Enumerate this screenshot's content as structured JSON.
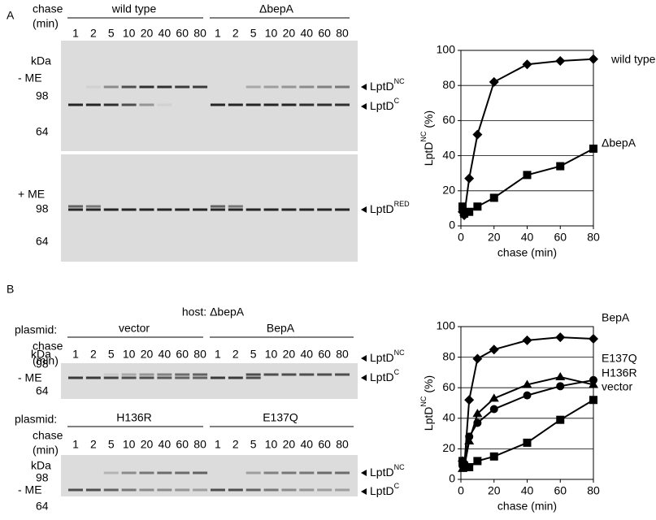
{
  "panel_a": {
    "letter": "A",
    "chase": "chase",
    "chase_unit": "(min)",
    "groups": [
      "wild type",
      "ΔbepA"
    ],
    "lanes": [
      "1",
      "2",
      "5",
      "10",
      "20",
      "40",
      "60",
      "80"
    ],
    "kda": "kDa",
    "conditions": [
      "- ME",
      "+ ME"
    ],
    "markers": [
      "98",
      "64"
    ],
    "band_labels": [
      {
        "base": "LptD",
        "sup": "NC"
      },
      {
        "base": "LptD",
        "sup": "C"
      },
      {
        "base": "LptD",
        "sup": "RED"
      }
    ]
  },
  "panel_b": {
    "letter": "B",
    "host": "host: ΔbepA",
    "plasmid": "plasmid:",
    "chase": "chase",
    "chase_unit": "(min)",
    "groups": [
      "vector",
      "BepA",
      "H136R",
      "E137Q"
    ],
    "lanes": [
      "1",
      "2",
      "5",
      "10",
      "20",
      "40",
      "60",
      "80"
    ],
    "kda": "kDa",
    "condition": "- ME",
    "markers": [
      "98",
      "64"
    ],
    "band_labels": [
      {
        "base": "LptD",
        "sup": "NC"
      },
      {
        "base": "LptD",
        "sup": "C"
      }
    ]
  },
  "chart_data": [
    {
      "type": "line",
      "x_label": "chase (min)",
      "y_label": {
        "base": "LptD",
        "sup": "NC",
        "suffix": "(%)"
      },
      "x": [
        1,
        2,
        5,
        10,
        20,
        40,
        60,
        80
      ],
      "xlim": [
        0,
        80
      ],
      "xticks": [
        0,
        20,
        40,
        60,
        80
      ],
      "ylim": [
        0,
        100
      ],
      "yticks": [
        0,
        20,
        40,
        60,
        80,
        100
      ],
      "grid": true,
      "series": [
        {
          "name": "wild type",
          "color": "#000000",
          "marker": "diamond",
          "values": [
            8,
            6,
            27,
            52,
            82,
            92,
            94,
            95
          ]
        },
        {
          "name": "ΔbepA",
          "color": "#000000",
          "marker": "square",
          "values": [
            11,
            7,
            8,
            11,
            16,
            29,
            34,
            44
          ]
        }
      ]
    },
    {
      "type": "line",
      "x_label": "chase (min)",
      "y_label": {
        "base": "LptD",
        "sup": "NC",
        "suffix": "(%)"
      },
      "x": [
        1,
        2,
        5,
        10,
        20,
        40,
        60,
        80
      ],
      "xlim": [
        0,
        80
      ],
      "xticks": [
        0,
        20,
        40,
        60,
        80
      ],
      "ylim": [
        0,
        100
      ],
      "yticks": [
        0,
        20,
        40,
        60,
        80,
        100
      ],
      "grid": true,
      "series": [
        {
          "name": "BepA",
          "color": "#000000",
          "marker": "diamond",
          "values": [
            12,
            8,
            52,
            79,
            85,
            91,
            93,
            92
          ]
        },
        {
          "name": "E137Q",
          "color": "#000000",
          "marker": "circle",
          "values": [
            9,
            10,
            28,
            37,
            46,
            55,
            61,
            65
          ]
        },
        {
          "name": "H136R",
          "color": "#000000",
          "marker": "triangle",
          "values": [
            7,
            8,
            25,
            43,
            53,
            62,
            67,
            62
          ]
        },
        {
          "name": "vector",
          "color": "#000000",
          "marker": "square",
          "values": [
            12,
            9,
            8,
            12,
            15,
            24,
            39,
            52
          ]
        }
      ]
    }
  ]
}
